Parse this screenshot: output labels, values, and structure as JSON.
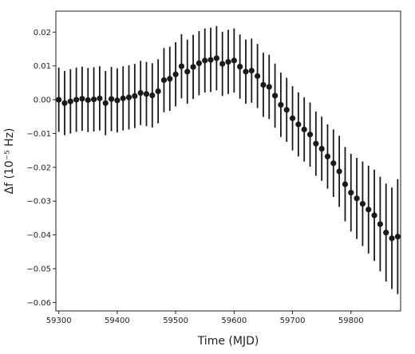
{
  "chart_data": {
    "type": "scatter",
    "xlabel": "Time (MJD)",
    "ylabel": "Δf (10⁻⁵ Hz)",
    "xlim": [
      59295,
      59885
    ],
    "ylim": [
      -0.0625,
      0.0262
    ],
    "xticks": [
      59300,
      59400,
      59500,
      59600,
      59700,
      59800
    ],
    "xtick_labels": [
      "59300",
      "59400",
      "59500",
      "59600",
      "59700",
      "59800"
    ],
    "yticks": [
      0.02,
      0.01,
      0.0,
      -0.01,
      -0.02,
      -0.03,
      -0.04,
      -0.05,
      -0.06
    ],
    "ytick_labels": [
      "0.02",
      "0.01",
      "0.00",
      "−0.01",
      "−0.02",
      "−0.03",
      "−0.04",
      "−0.05",
      "−0.06"
    ],
    "grid": false,
    "marker_color": "#1a1a1a",
    "errorbar_color": "#1a1a1a",
    "series": [
      {
        "x": [
          59300,
          59310,
          59320,
          59330,
          59340,
          59350,
          59360,
          59370,
          59380,
          59390,
          59400,
          59410,
          59420,
          59430,
          59440,
          59450,
          59460,
          59470,
          59480,
          59490,
          59500,
          59510,
          59520,
          59530,
          59540,
          59550,
          59560,
          59570,
          59580,
          59590,
          59600,
          59610,
          59620,
          59630,
          59640,
          59650,
          59660,
          59670,
          59680,
          59690,
          59700,
          59710,
          59720,
          59730,
          59740,
          59750,
          59760,
          59770,
          59780,
          59790,
          59800,
          59810,
          59820,
          59830,
          59840,
          59850,
          59860,
          59870,
          59880
        ],
        "y": [
          0.0,
          -0.001,
          -0.0005,
          0.0,
          0.0003,
          -0.0001,
          0.0001,
          0.0004,
          -0.001,
          0.0002,
          -0.0002,
          0.0004,
          0.0007,
          0.0011,
          0.002,
          0.0017,
          0.0013,
          0.0025,
          0.0058,
          0.0062,
          0.0075,
          0.0099,
          0.0083,
          0.0097,
          0.0108,
          0.0116,
          0.0118,
          0.0123,
          0.0106,
          0.0112,
          0.0116,
          0.0098,
          0.0083,
          0.0086,
          0.007,
          0.0044,
          0.0038,
          0.0012,
          -0.0015,
          -0.003,
          -0.0055,
          -0.0073,
          -0.0088,
          -0.0103,
          -0.013,
          -0.0145,
          -0.0168,
          -0.0188,
          -0.0212,
          -0.025,
          -0.0275,
          -0.0292,
          -0.0308,
          -0.0325,
          -0.0342,
          -0.0368,
          -0.0393,
          -0.041,
          -0.0405
        ],
        "yerr": [
          0.0095,
          0.0095,
          0.0095,
          0.0095,
          0.0095,
          0.0095,
          0.0095,
          0.0095,
          0.0095,
          0.0095,
          0.0095,
          0.0095,
          0.0095,
          0.0095,
          0.0095,
          0.0095,
          0.0095,
          0.0095,
          0.0095,
          0.0095,
          0.0095,
          0.0095,
          0.0095,
          0.0095,
          0.0095,
          0.0095,
          0.0095,
          0.0095,
          0.0095,
          0.0095,
          0.0095,
          0.0095,
          0.0095,
          0.0095,
          0.0095,
          0.0095,
          0.0095,
          0.0095,
          0.0095,
          0.0095,
          0.0095,
          0.0095,
          0.0095,
          0.0095,
          0.0095,
          0.0095,
          0.0095,
          0.01,
          0.0105,
          0.011,
          0.0115,
          0.012,
          0.0125,
          0.013,
          0.0135,
          0.014,
          0.0145,
          0.015,
          0.017
        ]
      }
    ]
  }
}
